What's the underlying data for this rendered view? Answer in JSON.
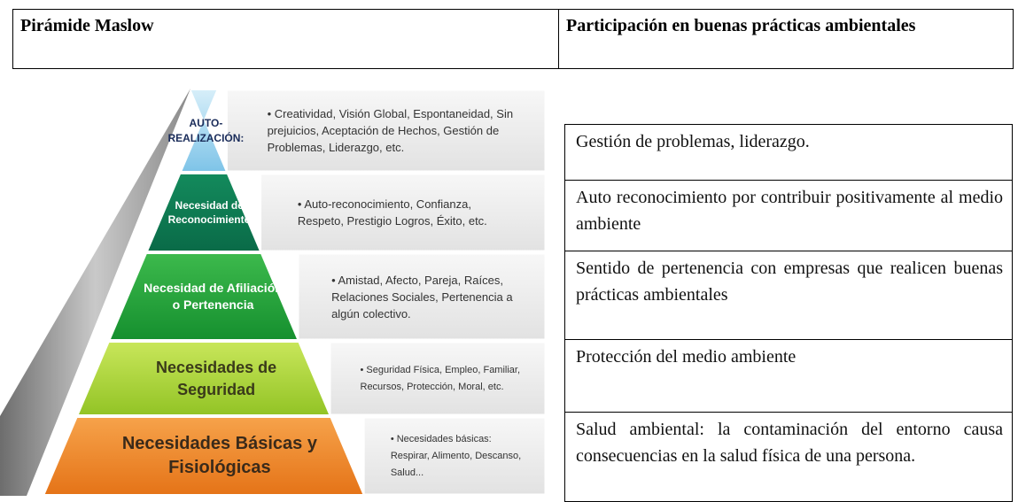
{
  "header": {
    "left": "Pirámide Maslow",
    "right": "Participación en buenas prácticas ambientales"
  },
  "pyramid": {
    "levels": [
      {
        "label": "AUTO-REALIZACIÓN:",
        "description": "• Creatividad, Visión Global, Espontaneidad, Sin prejuicios, Aceptación de Hechos, Gestión de Problemas, Liderazgo, etc."
      },
      {
        "label": "Necesidad de Reconocimiento",
        "description": "• Auto-reconocimiento, Confianza, Respeto, Prestigio Logros, Éxito, etc."
      },
      {
        "label": "Necesidad de Afiliación o Pertenencia",
        "description": "• Amistad, Afecto, Pareja, Raíces, Relaciones Sociales, Pertenencia a algún colectivo."
      },
      {
        "label": "Necesidades de Seguridad",
        "description": "• Seguridad Física, Empleo, Familiar, Recursos, Protección, Moral, etc."
      },
      {
        "label": "Necesidades Básicas y Fisiológicas",
        "description": "• Necesidades básicas: Respirar, Alimento, Descanso, Salud..."
      }
    ]
  },
  "rows": [
    "Gestión de problemas, liderazgo.",
    "Auto reconocimiento por contribuir positivamente al medio ambiente",
    "Sentido de pertenencia con empresas que realicen buenas prácticas ambientales",
    "Protección del medio ambiente",
    "Salud ambiental: la contaminación del entorno causa consecuencias en la salud física de una persona."
  ]
}
